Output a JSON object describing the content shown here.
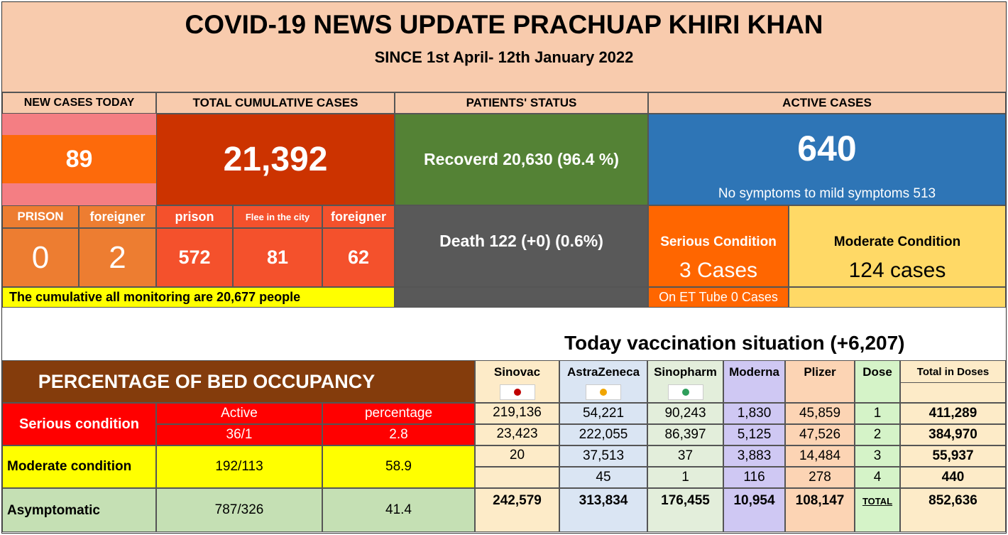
{
  "header": {
    "title": "COVID-19 NEWS UPDATE PRACHUAP KHIRI KHAN",
    "subtitle": "SINCE 1st April- 12th  January 2022"
  },
  "sections": {
    "new_cases_today": "NEW CASES TODAY",
    "total_cumulative": "TOTAL CUMULATIVE CASES",
    "patients_status": "PATIENTS' STATUS",
    "active_cases": "ACTIVE CASES"
  },
  "new_cases": {
    "value": "89",
    "prison_label": "PRISON",
    "foreigner_label": "foreigner",
    "prison_value": "0",
    "foreigner_value": "2"
  },
  "cumulative": {
    "value": "21,392",
    "prison_label": "prison",
    "flee_label": "Flee in the city",
    "foreigner_label": "foreigner",
    "prison_value": "572",
    "flee_value": "81",
    "foreigner_value": "62",
    "monitoring": "The cumulative all monitoring are 20,677 people"
  },
  "status": {
    "recovered": "Recoverd 20,630 (96.4 %)",
    "death": "Death 122 (+0) (0.6%)"
  },
  "active": {
    "value": "640",
    "mild": "No symptoms to mild symptoms 513",
    "serious_label": "Serious Condition",
    "serious_value": "3 Cases",
    "moderate_label": "Moderate Condition",
    "moderate_value": "124 cases",
    "et_tube": "On ET Tube 0 Cases"
  },
  "vaccination": {
    "title": "Today vaccination situation (+6,207)",
    "headers": [
      "Sinovac",
      "AstraZeneca",
      "Sinopharm",
      "Moderna",
      "Plizer",
      "Dose",
      "Total in Doses"
    ],
    "rows": [
      [
        "219,136",
        "54,221",
        "90,243",
        "1,830",
        "45,859",
        "1",
        "411,289"
      ],
      [
        "23,423",
        "222,055",
        "86,397",
        "5,125",
        "47,526",
        "2",
        "384,970"
      ],
      [
        "20",
        "37,513",
        "37",
        "3,883",
        "14,484",
        "3",
        "55,937"
      ],
      [
        "",
        "45",
        "1",
        "116",
        "278",
        "4",
        "440"
      ]
    ],
    "totals": [
      "242,579",
      "313,834",
      "176,455",
      "10,954",
      "108,147",
      "TOTAL",
      "852,636"
    ],
    "col_colors": [
      "#fdebc8",
      "#dae5f3",
      "#e3eedb",
      "#cfc8f3",
      "#fcd4b4",
      "#d5f3c8",
      "#fdebc8"
    ]
  },
  "beds": {
    "title": "PERCENTAGE OF BED OCCUPANCY",
    "active_label": "Active",
    "percentage_label": "percentage",
    "serious_label": "Serious condition",
    "serious_active": "36/1",
    "serious_pct": "2.8",
    "moderate_label": "Moderate condition",
    "moderate_active": "192/113",
    "moderate_pct": "58.9",
    "asym_label": "Asymptomatic",
    "asym_active": "787/326",
    "asym_pct": "41.4"
  }
}
